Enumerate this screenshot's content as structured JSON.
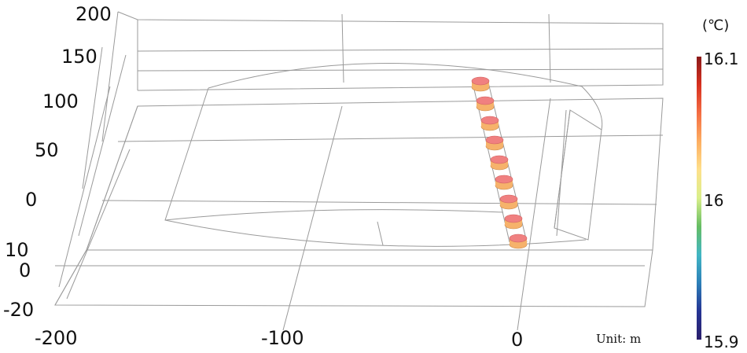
{
  "axes": {
    "vertical_tick_labels": [
      "200",
      "150",
      "100",
      "50",
      "0",
      "10",
      "0",
      "-20"
    ],
    "horizontal_tick_labels": [
      "-200",
      "-100",
      "0"
    ]
  },
  "unit_label": "Unit: m",
  "colorbar": {
    "unit": "(℃)",
    "max_label": "16.1",
    "mid_label": "16",
    "min_label": "15.9",
    "colors": [
      "#8b1a1a",
      "#d7301f",
      "#f46d43",
      "#fdae61",
      "#fee08b",
      "#d9ef8b",
      "#66bd63",
      "#41b6c4",
      "#2c7fb8",
      "#253494",
      "#2a1e6b"
    ]
  },
  "cylinders": {
    "count": 9,
    "top_color": "#f08080",
    "body_color": "#f6b26b"
  }
}
